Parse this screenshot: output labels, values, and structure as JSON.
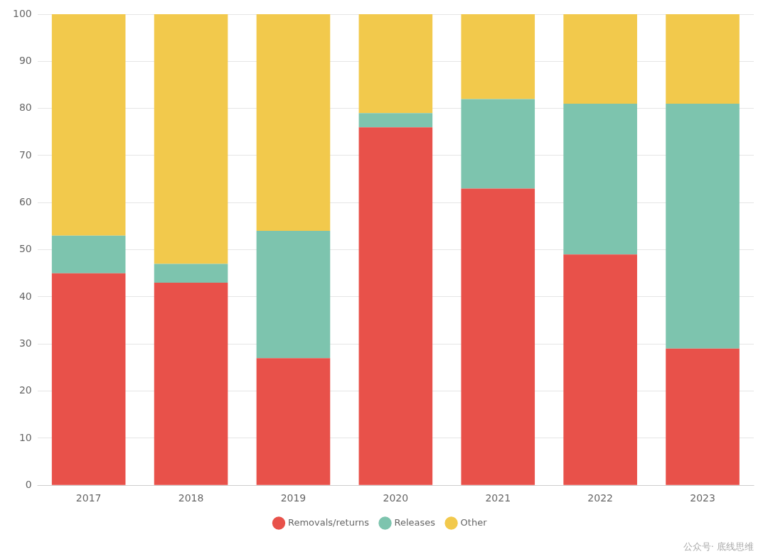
{
  "chart_data": {
    "type": "bar",
    "stacked": true,
    "categories": [
      "2017",
      "2018",
      "2019",
      "2020",
      "2021",
      "2022",
      "2023"
    ],
    "series": [
      {
        "name": "Removals/returns",
        "color": "#E8514A",
        "values": [
          45,
          43,
          27,
          76,
          63,
          49,
          29
        ]
      },
      {
        "name": "Releases",
        "color": "#7DC4AE",
        "values": [
          8,
          4,
          27,
          3,
          19,
          32,
          52
        ]
      },
      {
        "name": "Other",
        "color": "#F2C94C",
        "values": [
          47,
          53,
          46,
          21,
          18,
          19,
          19
        ]
      }
    ],
    "ylim": [
      0,
      100
    ],
    "yticks": [
      0,
      10,
      20,
      30,
      40,
      50,
      60,
      70,
      80,
      90,
      100
    ],
    "grid": true,
    "legend": "bottom",
    "annotations": [
      "公众号· 底线思维"
    ]
  }
}
